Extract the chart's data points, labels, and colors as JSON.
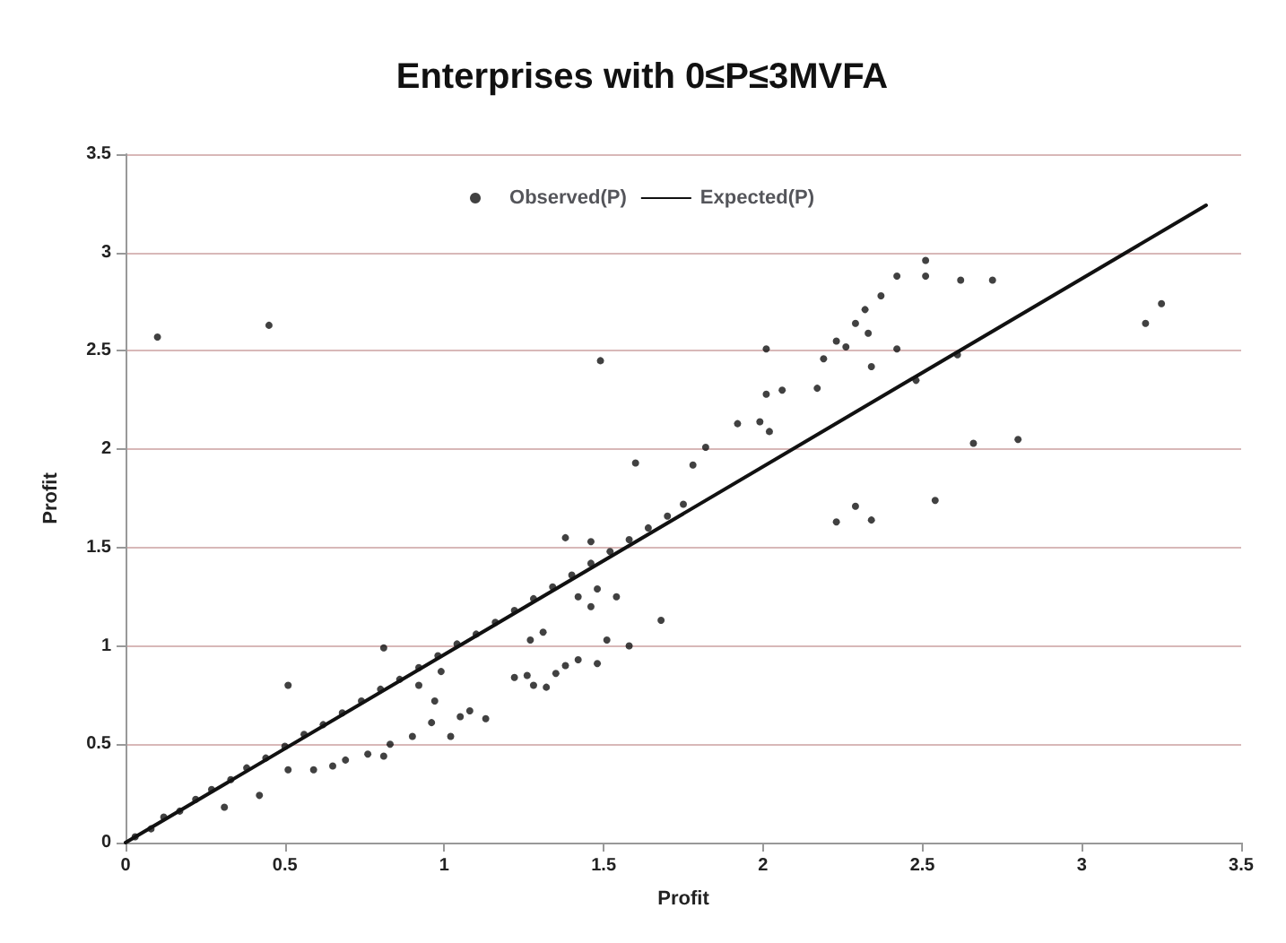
{
  "chart_data": {
    "type": "scatter",
    "title": "Enterprises with 0≤P≤3MVFA",
    "xlabel": "Profit",
    "ylabel": "Profit",
    "xlim": [
      0,
      3.5
    ],
    "ylim": [
      0,
      3.5
    ],
    "xticks": [
      0,
      0.5,
      1,
      1.5,
      2,
      2.5,
      3,
      3.5
    ],
    "yticks": [
      0,
      0.5,
      1,
      1.5,
      2,
      2.5,
      3,
      3.5
    ],
    "grid": "y",
    "legend": "top",
    "series": [
      {
        "name": "Observed(P)",
        "marker": "circle",
        "color": "#111111",
        "x": [
          0.03,
          0.08,
          0.12,
          0.17,
          0.22,
          0.27,
          0.33,
          0.38,
          0.44,
          0.5,
          0.56,
          0.62,
          0.68,
          0.74,
          0.8,
          0.86,
          0.92,
          0.98,
          1.04,
          1.1,
          1.16,
          1.22,
          1.28,
          1.34,
          1.4,
          1.46,
          1.52,
          1.58,
          1.64,
          1.7,
          1.75,
          0.1,
          0.45,
          1.49,
          1.6,
          2.51,
          2.51,
          2.42,
          2.62,
          2.72,
          2.37,
          2.32,
          2.29,
          2.33,
          2.23,
          2.26,
          2.19,
          2.34,
          2.42,
          2.61,
          2.48,
          2.06,
          2.01,
          2.17,
          1.92,
          1.99,
          2.02,
          1.82,
          1.78,
          2.01,
          2.66,
          2.8,
          2.23,
          2.29,
          2.34,
          2.54,
          3.2,
          3.25,
          0.51,
          0.81,
          0.31,
          0.42,
          0.51,
          0.59,
          0.65,
          0.69,
          0.76,
          0.81,
          0.83,
          0.9,
          0.96,
          1.02,
          1.05,
          1.08,
          1.13,
          0.97,
          0.92,
          0.99,
          1.22,
          1.26,
          1.28,
          1.32,
          1.35,
          1.38,
          1.42,
          1.48,
          1.27,
          1.31,
          1.51,
          1.58,
          1.68,
          1.42,
          1.48,
          1.46,
          1.54,
          1.38,
          1.46
        ],
        "values": [
          0.03,
          0.07,
          0.13,
          0.16,
          0.22,
          0.27,
          0.32,
          0.38,
          0.43,
          0.49,
          0.55,
          0.6,
          0.66,
          0.72,
          0.78,
          0.83,
          0.89,
          0.95,
          1.01,
          1.06,
          1.12,
          1.18,
          1.24,
          1.3,
          1.36,
          1.42,
          1.48,
          1.54,
          1.6,
          1.66,
          1.72,
          2.57,
          2.63,
          2.45,
          1.93,
          2.96,
          2.88,
          2.88,
          2.86,
          2.86,
          2.78,
          2.71,
          2.64,
          2.59,
          2.55,
          2.52,
          2.46,
          2.42,
          2.51,
          2.48,
          2.35,
          2.3,
          2.28,
          2.31,
          2.13,
          2.14,
          2.09,
          2.01,
          1.92,
          2.51,
          2.03,
          2.05,
          1.63,
          1.71,
          1.64,
          1.74,
          2.64,
          2.74,
          0.8,
          0.99,
          0.18,
          0.24,
          0.37,
          0.37,
          0.39,
          0.42,
          0.45,
          0.44,
          0.5,
          0.54,
          0.61,
          0.54,
          0.64,
          0.67,
          0.63,
          0.72,
          0.8,
          0.87,
          0.84,
          0.85,
          0.8,
          0.79,
          0.86,
          0.9,
          0.93,
          0.91,
          1.03,
          1.07,
          1.03,
          1.0,
          1.13,
          1.25,
          1.29,
          1.2,
          1.25,
          1.55,
          1.53
        ]
      },
      {
        "name": "Expected(P)",
        "type": "line",
        "marker": "none",
        "color": "#111111",
        "x": [
          0,
          3.39
        ],
        "values": [
          0,
          3.24
        ]
      }
    ]
  }
}
